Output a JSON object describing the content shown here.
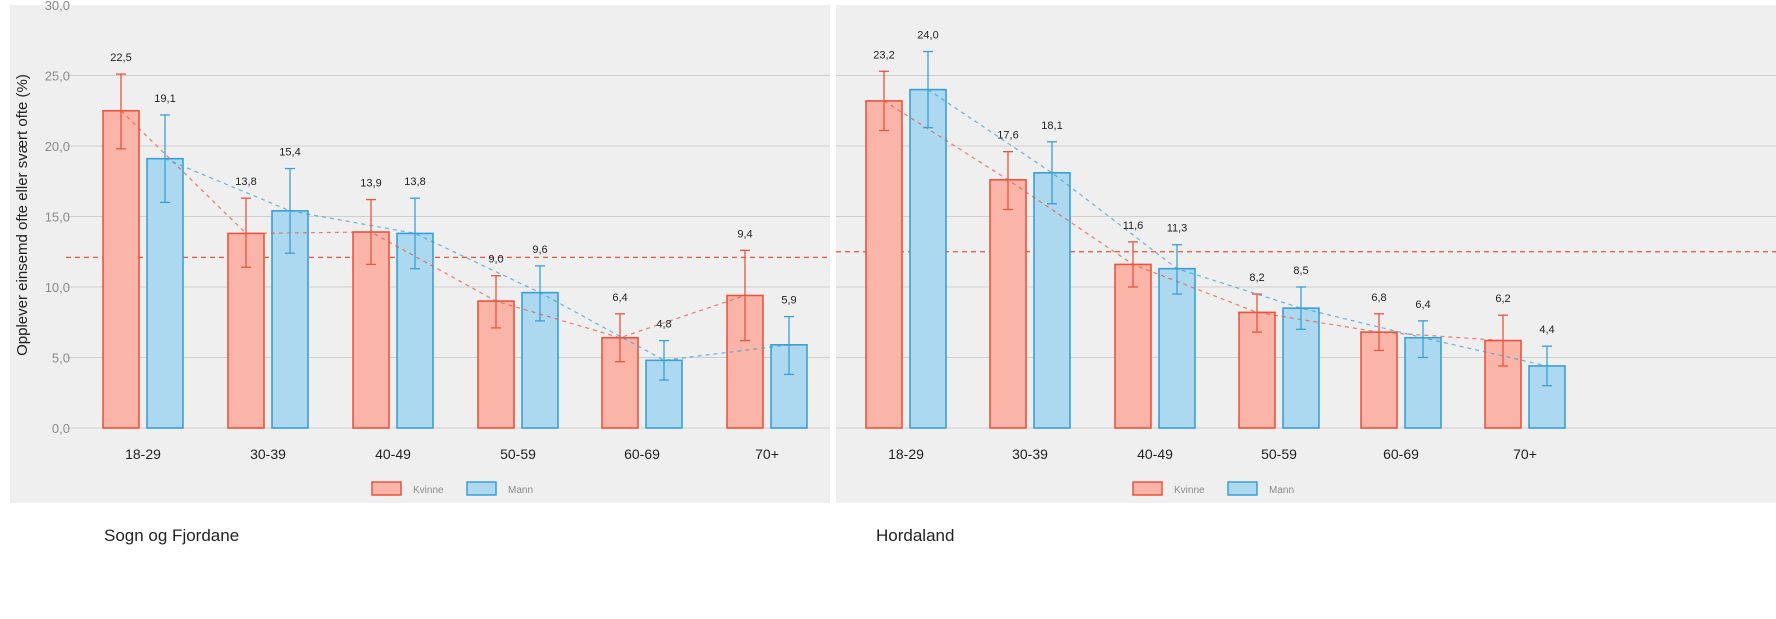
{
  "chart_data": [
    {
      "type": "bar",
      "caption": "Sogn og Fjordane",
      "categories": [
        "18-29",
        "30-39",
        "40-49",
        "50-59",
        "60-69",
        "70+"
      ],
      "ylabel": "Opplever einsemd ofte eller svært ofte (%)",
      "ylim": [
        0,
        30
      ],
      "yticks": [
        "0,0",
        "5,0",
        "10,0",
        "15,0",
        "20,0",
        "25,0",
        "30,0"
      ],
      "reference_line": 12.1,
      "grid": true,
      "legend_position": "bottom",
      "series": [
        {
          "name": "Kvinne",
          "values": [
            22.5,
            13.8,
            13.9,
            9.0,
            6.4,
            9.4
          ],
          "labels": [
            "22,5",
            "13,8",
            "13,9",
            "9,0",
            "6,4",
            "9,4"
          ],
          "ci_low": [
            19.8,
            11.4,
            11.6,
            7.1,
            4.7,
            6.2
          ],
          "ci_high": [
            25.1,
            16.3,
            16.2,
            10.8,
            8.1,
            12.6
          ]
        },
        {
          "name": "Mann",
          "values": [
            19.1,
            15.4,
            13.8,
            9.6,
            4.8,
            5.9
          ],
          "labels": [
            "19,1",
            "15,4",
            "13,8",
            "9,6",
            "4,8",
            "5,9"
          ],
          "ci_low": [
            16.0,
            12.4,
            11.3,
            7.6,
            3.4,
            3.8
          ],
          "ci_high": [
            22.2,
            18.4,
            16.3,
            11.5,
            6.2,
            7.9
          ]
        }
      ]
    },
    {
      "type": "bar",
      "caption": "Hordaland",
      "categories": [
        "18-29",
        "30-39",
        "40-49",
        "50-59",
        "60-69",
        "70+"
      ],
      "ylim": [
        0,
        30
      ],
      "reference_line": 12.5,
      "grid": true,
      "legend_position": "bottom",
      "series": [
        {
          "name": "Kvinne",
          "values": [
            23.2,
            17.6,
            11.6,
            8.2,
            6.8,
            6.2
          ],
          "labels": [
            "23,2",
            "17,6",
            "11,6",
            "8,2",
            "6,8",
            "6,2"
          ],
          "ci_low": [
            21.1,
            15.5,
            10.0,
            6.8,
            5.5,
            4.4
          ],
          "ci_high": [
            25.3,
            19.6,
            13.2,
            9.5,
            8.1,
            8.0
          ]
        },
        {
          "name": "Mann",
          "values": [
            24.0,
            18.1,
            11.3,
            8.5,
            6.4,
            4.4
          ],
          "labels": [
            "24,0",
            "18,1",
            "11,3",
            "8,5",
            "6,4",
            "4,4"
          ],
          "ci_low": [
            21.3,
            15.9,
            9.5,
            7.0,
            5.0,
            3.0
          ],
          "ci_high": [
            26.7,
            20.3,
            13.0,
            10.0,
            7.6,
            5.8
          ]
        }
      ]
    }
  ],
  "colors": {
    "kvinne_fill": "#fbb5a8",
    "kvinne_stroke": "#e8553f",
    "mann_fill": "#acd9f0",
    "mann_stroke": "#3a9fd6",
    "panel_bg": "#efefef",
    "gridline": "#cfcfcf",
    "reference": "#e8553f"
  }
}
